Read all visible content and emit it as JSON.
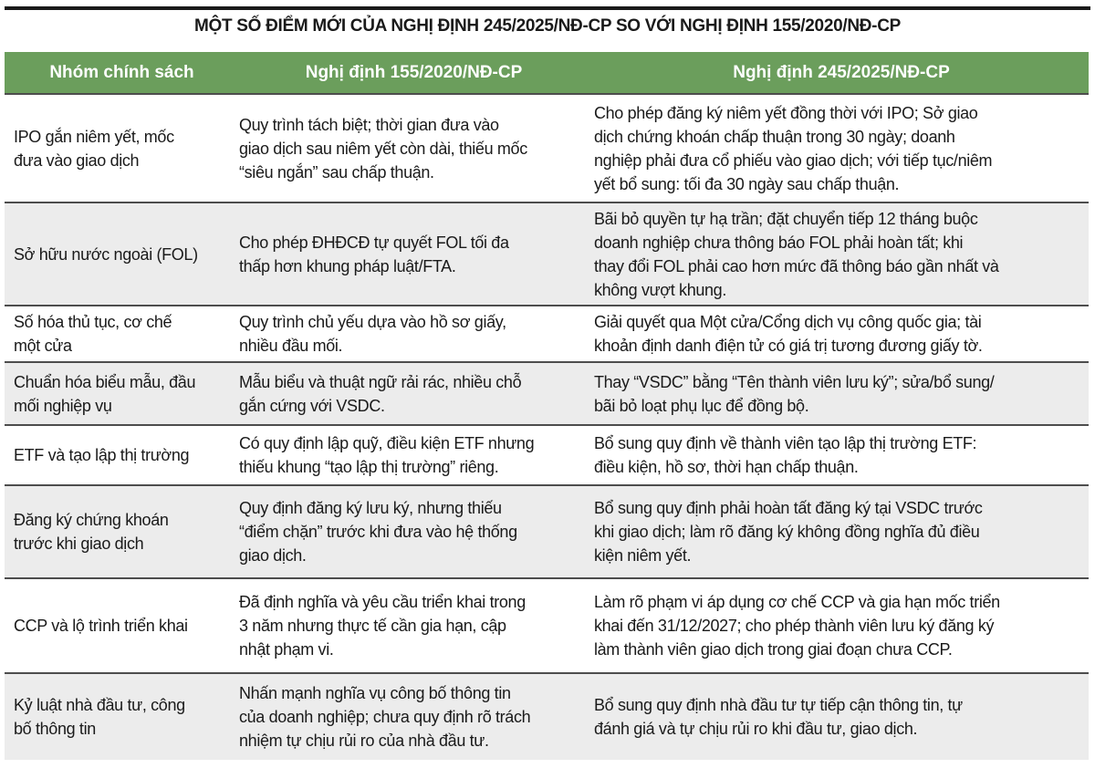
{
  "title": "MỘT SỐ ĐIỂM MỚI CỦA NGHỊ ĐỊNH 245/2025/NĐ-CP SO VỚI NGHỊ ĐỊNH 155/2020/NĐ-CP",
  "colors": {
    "header_bg": "#6b9e5c",
    "alt_row_bg": "#ececec"
  },
  "columns": [
    "Nhóm chính sách",
    "Nghị định 155/2020/NĐ-CP",
    "Nghị định 245/2025/NĐ-CP"
  ],
  "rows": [
    {
      "group": [
        "IPO gắn niêm yết, mốc",
        "đưa vào giao dịch"
      ],
      "old": [
        "Quy trình tách biệt; thời gian đưa vào",
        "giao dịch sau niêm yết còn dài, thiếu mốc",
        "“siêu ngắn” sau chấp thuận."
      ],
      "new": [
        "Cho phép đăng ký niêm yết đồng thời với IPO; Sở giao",
        "dịch chứng khoán chấp thuận trong 30 ngày; doanh",
        "nghiệp phải đưa cổ phiếu vào giao dịch; với tiếp tục/niêm",
        "yết bổ sung: tối đa 30 ngày sau chấp thuận."
      ]
    },
    {
      "group": [
        "Sở hữu nước ngoài (FOL)"
      ],
      "old": [
        "Cho phép ĐHĐCĐ tự quyết FOL tối đa",
        "thấp hơn khung pháp luật/FTA."
      ],
      "new": [
        "Bãi bỏ quyền tự hạ trần; đặt chuyển tiếp 12 tháng buộc",
        "doanh nghiệp chưa thông báo FOL phải hoàn tất; khi",
        "thay đổi FOL phải cao hơn mức đã thông báo gần nhất và",
        "không vượt khung."
      ]
    },
    {
      "group": [
        "Số hóa thủ tục, cơ chế",
        "một cửa"
      ],
      "old": [
        "Quy trình chủ yếu dựa vào hồ sơ giấy,",
        "nhiều đầu mối."
      ],
      "new": [
        "Giải quyết qua Một cửa/Cổng dịch vụ công quốc gia; tài",
        "khoản định danh điện tử có giá trị tương đương giấy tờ."
      ]
    },
    {
      "group": [
        "Chuẩn hóa biểu mẫu, đầu",
        "mối nghiệp vụ"
      ],
      "old": [
        "Mẫu biểu và thuật ngữ rải rác, nhiều chỗ",
        "gắn cứng với VSDC."
      ],
      "new": [
        "Thay “VSDC” bằng “Tên thành viên lưu ký”; sửa/bổ sung/",
        "bãi bỏ loạt phụ lục để đồng bộ."
      ]
    },
    {
      "group": [
        "ETF và tạo lập thị trường"
      ],
      "old": [
        "Có quy định lập quỹ, điều kiện ETF nhưng",
        "thiếu khung “tạo lập thị trường” riêng."
      ],
      "new": [
        "Bổ sung quy định về thành viên tạo lập thị trường ETF:",
        "điều kiện, hồ sơ, thời hạn chấp thuận."
      ]
    },
    {
      "group": [
        "Đăng ký chứng khoán",
        "trước khi giao dịch"
      ],
      "old": [
        "Quy định đăng ký lưu ký, nhưng thiếu",
        "“điểm chặn” trước khi đưa vào hệ thống",
        "giao dịch."
      ],
      "new": [
        "Bổ sung quy định phải hoàn tất đăng ký tại VSDC trước",
        "khi giao dịch; làm rõ đăng ký không đồng nghĩa đủ điều",
        "kiện niêm yết."
      ]
    },
    {
      "group": [
        "CCP và lộ trình triển khai"
      ],
      "old": [
        "Đã định nghĩa và yêu cầu triển khai trong",
        "3 năm nhưng thực tế cần gia hạn, cập",
        "nhật phạm vi."
      ],
      "new": [
        "Làm rõ phạm vi áp dụng cơ chế CCP và gia hạn mốc triển",
        "khai đến 31/12/2027; cho phép thành viên lưu ký đăng ký",
        "làm thành viên giao dịch trong giai đoạn chưa CCP."
      ]
    },
    {
      "group": [
        "Kỷ luật nhà đầu tư, công",
        "bố thông tin"
      ],
      "old": [
        "Nhấn mạnh nghĩa vụ công bố thông tin",
        "của doanh nghiệp; chưa quy định rõ trách",
        "nhiệm tự chịu rủi ro của nhà đầu tư."
      ],
      "new": [
        "Bổ sung quy định nhà đầu tư tự tiếp cận thông tin, tự",
        "đánh giá và tự chịu rủi ro khi đầu tư, giao dịch."
      ]
    }
  ]
}
